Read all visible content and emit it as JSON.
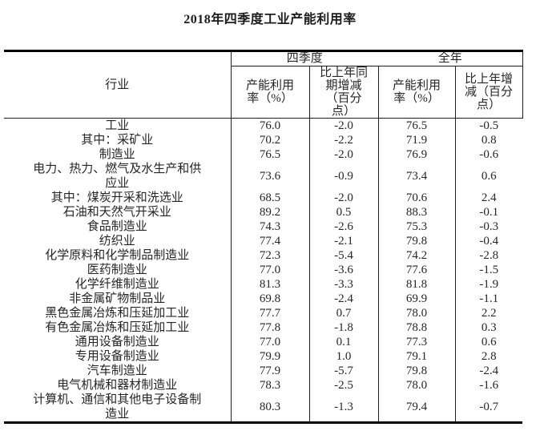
{
  "chart_data": {
    "type": "table",
    "title": "2018年四季度工业产能利用率",
    "row_header": "行业",
    "column_groups": [
      {
        "label": "四季度",
        "columns": [
          "产能利用率（%）",
          "比上年同期增减（百分点）"
        ]
      },
      {
        "label": "全年",
        "columns": [
          "产能利用率（%）",
          "比上年增减（百分点）"
        ]
      }
    ],
    "rows": [
      {
        "industry": "工业",
        "q4_util": "76.0",
        "q4_chg": "-2.0",
        "yr_util": "76.5",
        "yr_chg": "-0.5"
      },
      {
        "industry": "其中：采矿业",
        "q4_util": "70.2",
        "q4_chg": "-2.2",
        "yr_util": "71.9",
        "yr_chg": "0.8"
      },
      {
        "industry": "制造业",
        "q4_util": "76.5",
        "q4_chg": "-2.0",
        "yr_util": "76.9",
        "yr_chg": "-0.6"
      },
      {
        "industry": "电力、热力、燃气及水生产和供应业",
        "q4_util": "73.6",
        "q4_chg": "-0.9",
        "yr_util": "73.4",
        "yr_chg": "0.6"
      },
      {
        "industry": "其中：煤炭开采和洗选业",
        "q4_util": "68.5",
        "q4_chg": "-2.0",
        "yr_util": "70.6",
        "yr_chg": "2.4"
      },
      {
        "industry": "石油和天然气开采业",
        "q4_util": "89.2",
        "q4_chg": "0.5",
        "yr_util": "88.3",
        "yr_chg": "-0.1"
      },
      {
        "industry": "食品制造业",
        "q4_util": "74.3",
        "q4_chg": "-2.6",
        "yr_util": "75.3",
        "yr_chg": "-0.3"
      },
      {
        "industry": "纺织业",
        "q4_util": "77.4",
        "q4_chg": "-2.1",
        "yr_util": "79.8",
        "yr_chg": "-0.4"
      },
      {
        "industry": "化学原料和化学制品制造业",
        "q4_util": "72.3",
        "q4_chg": "-5.4",
        "yr_util": "74.2",
        "yr_chg": "-2.8"
      },
      {
        "industry": "医药制造业",
        "q4_util": "77.0",
        "q4_chg": "-3.6",
        "yr_util": "77.6",
        "yr_chg": "-1.5"
      },
      {
        "industry": "化学纤维制造业",
        "q4_util": "81.3",
        "q4_chg": "-3.3",
        "yr_util": "81.8",
        "yr_chg": "-1.9"
      },
      {
        "industry": "非金属矿物制品业",
        "q4_util": "69.8",
        "q4_chg": "-2.4",
        "yr_util": "69.9",
        "yr_chg": "-1.1"
      },
      {
        "industry": "黑色金属冶炼和压延加工业",
        "q4_util": "77.7",
        "q4_chg": "0.7",
        "yr_util": "78.0",
        "yr_chg": "2.2"
      },
      {
        "industry": "有色金属冶炼和压延加工业",
        "q4_util": "77.8",
        "q4_chg": "-1.8",
        "yr_util": "78.8",
        "yr_chg": "0.3"
      },
      {
        "industry": "通用设备制造业",
        "q4_util": "77.0",
        "q4_chg": "0.1",
        "yr_util": "77.3",
        "yr_chg": "0.6"
      },
      {
        "industry": "专用设备制造业",
        "q4_util": "79.9",
        "q4_chg": "1.0",
        "yr_util": "79.1",
        "yr_chg": "2.8"
      },
      {
        "industry": "汽车制造业",
        "q4_util": "77.9",
        "q4_chg": "-5.7",
        "yr_util": "79.8",
        "yr_chg": "-2.4"
      },
      {
        "industry": "电气机械和器材制造业",
        "q4_util": "78.3",
        "q4_chg": "-2.5",
        "yr_util": "78.0",
        "yr_chg": "-1.6"
      },
      {
        "industry": "计算机、通信和其他电子设备制造业",
        "q4_util": "80.3",
        "q4_chg": "-1.3",
        "yr_util": "79.4",
        "yr_chg": "-0.7"
      }
    ]
  }
}
